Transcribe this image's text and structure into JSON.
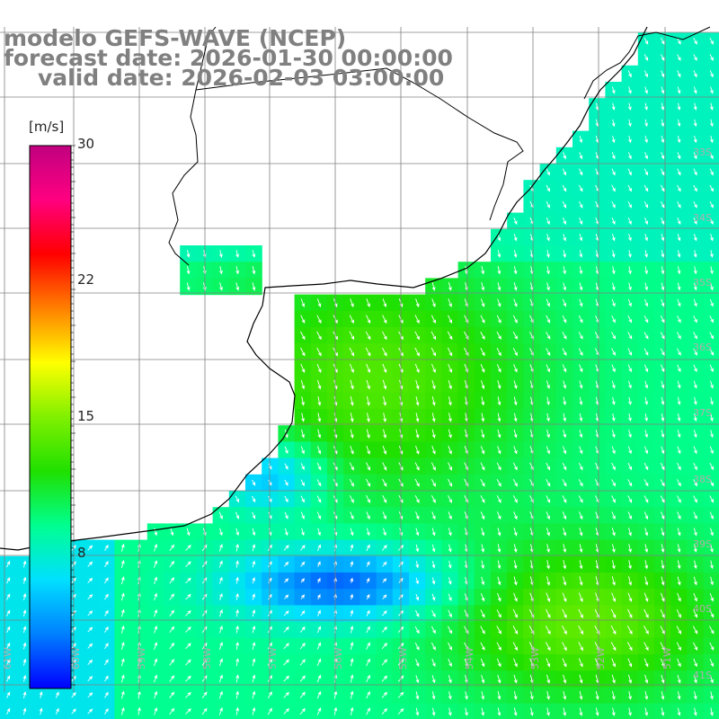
{
  "title": {
    "model": "modelo GEFS-WAVE (NCEP)",
    "forecast": "forecast date: 2026-01-30 00:00:00",
    "valid": "valid date: 2026-02-03 03:00:00"
  },
  "colorbar": {
    "unit": "[m/s]",
    "ticks": [
      "30",
      "22",
      "15",
      "8"
    ],
    "min": 0,
    "max": 30,
    "colors": [
      "#0000ff",
      "#0080ff",
      "#00e0ff",
      "#00ff90",
      "#20e000",
      "#80f000",
      "#ffff00",
      "#ff8000",
      "#ff0000",
      "#ff0080",
      "#c00080"
    ]
  },
  "grid": {
    "lat_labels": [
      "33S",
      "34S",
      "35S",
      "36S",
      "37S",
      "38S",
      "39S",
      "40S",
      "41S"
    ],
    "lon_labels": [
      "61W",
      "60W",
      "59W",
      "58W",
      "57W",
      "56W",
      "55W",
      "54W",
      "53W",
      "52W",
      "51W"
    ]
  },
  "colors": {
    "land": "#ffffff",
    "grid_line": "#808080",
    "coast": "#000000",
    "arrow": "#ffffff",
    "title": "#808080"
  }
}
